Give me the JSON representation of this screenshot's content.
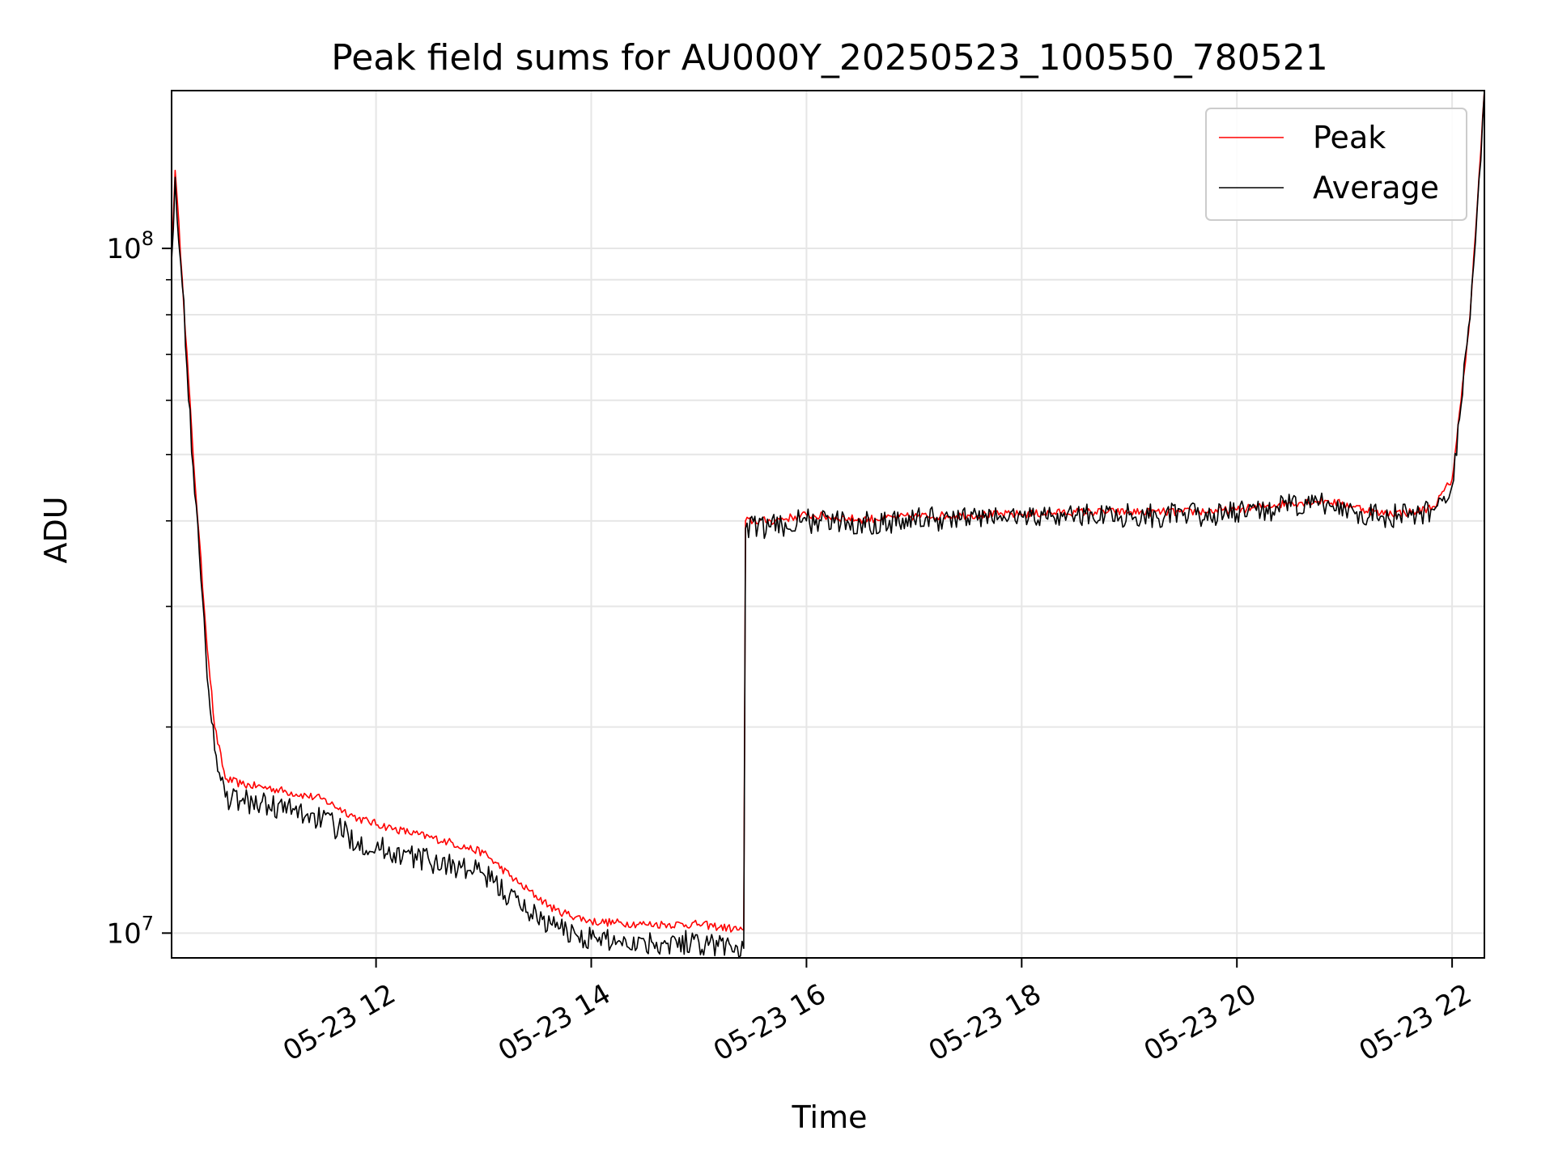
{
  "chart_data": {
    "type": "line",
    "title": "Peak field sums for AU000Y_20250523_100550_780521",
    "xlabel": "Time",
    "ylabel": "ADU",
    "y_scale": "log",
    "ylim": [
      9200000,
      170000000
    ],
    "xlim": [
      "2025-05-23 10:06",
      "2025-05-23 22:18"
    ],
    "grid": true,
    "legend_position": "top-right",
    "x_ticks": [
      {
        "value": "2025-05-23 12:00",
        "label": "05-23 12"
      },
      {
        "value": "2025-05-23 14:00",
        "label": "05-23 14"
      },
      {
        "value": "2025-05-23 16:00",
        "label": "05-23 16"
      },
      {
        "value": "2025-05-23 18:00",
        "label": "05-23 18"
      },
      {
        "value": "2025-05-23 20:00",
        "label": "05-23 20"
      },
      {
        "value": "2025-05-23 22:00",
        "label": "05-23 22"
      }
    ],
    "y_ticks": [
      {
        "value": 10000000,
        "base": "10",
        "exp": "7"
      },
      {
        "value": 100000000,
        "base": "10",
        "exp": "8"
      }
    ],
    "series": [
      {
        "name": "Peak",
        "color": "#ff0000",
        "x": [
          "2025-05-23 10:06",
          "2025-05-23 10:08",
          "2025-05-23 10:12",
          "2025-05-23 10:18",
          "2025-05-23 10:25",
          "2025-05-23 10:30",
          "2025-05-23 10:36",
          "2025-05-23 10:45",
          "2025-05-23 11:00",
          "2025-05-23 11:30",
          "2025-05-23 11:50",
          "2025-05-23 12:10",
          "2025-05-23 12:40",
          "2025-05-23 13:00",
          "2025-05-23 13:20",
          "2025-05-23 13:40",
          "2025-05-23 14:00",
          "2025-05-23 14:30",
          "2025-05-23 15:00",
          "2025-05-23 15:25",
          "2025-05-23 15:26",
          "2025-05-23 15:40",
          "2025-05-23 16:00",
          "2025-05-23 16:30",
          "2025-05-23 17:00",
          "2025-05-23 17:30",
          "2025-05-23 18:00",
          "2025-05-23 18:30",
          "2025-05-23 19:00",
          "2025-05-23 19:30",
          "2025-05-23 20:00",
          "2025-05-23 20:30",
          "2025-05-23 20:50",
          "2025-05-23 21:05",
          "2025-05-23 21:20",
          "2025-05-23 21:40",
          "2025-05-23 21:50",
          "2025-05-23 22:00",
          "2025-05-23 22:05",
          "2025-05-23 22:10",
          "2025-05-23 22:14",
          "2025-05-23 22:18"
        ],
        "y": [
          98000000,
          130000000,
          90000000,
          50000000,
          28000000,
          20000000,
          16800000,
          16500000,
          16300000,
          15700000,
          14700000,
          14200000,
          13600000,
          13100000,
          11800000,
          10800000,
          10400000,
          10300000,
          10300000,
          10100000,
          40000000,
          40000000,
          40800000,
          40200000,
          40600000,
          40800000,
          40900000,
          41200000,
          41200000,
          41200000,
          41500000,
          42500000,
          42800000,
          42000000,
          41000000,
          41200000,
          42000000,
          46000000,
          60000000,
          80000000,
          115000000,
          170000000
        ]
      },
      {
        "name": "Average",
        "color": "#000000",
        "x": [
          "2025-05-23 10:06",
          "2025-05-23 10:08",
          "2025-05-23 10:12",
          "2025-05-23 10:18",
          "2025-05-23 10:25",
          "2025-05-23 10:30",
          "2025-05-23 10:36",
          "2025-05-23 10:45",
          "2025-05-23 11:00",
          "2025-05-23 11:30",
          "2025-05-23 11:50",
          "2025-05-23 12:10",
          "2025-05-23 12:40",
          "2025-05-23 13:00",
          "2025-05-23 13:20",
          "2025-05-23 13:40",
          "2025-05-23 14:00",
          "2025-05-23 14:30",
          "2025-05-23 15:00",
          "2025-05-23 15:25",
          "2025-05-23 15:26",
          "2025-05-23 15:40",
          "2025-05-23 16:00",
          "2025-05-23 16:30",
          "2025-05-23 17:00",
          "2025-05-23 17:30",
          "2025-05-23 18:00",
          "2025-05-23 18:30",
          "2025-05-23 19:00",
          "2025-05-23 19:30",
          "2025-05-23 20:00",
          "2025-05-23 20:30",
          "2025-05-23 20:50",
          "2025-05-23 21:05",
          "2025-05-23 21:20",
          "2025-05-23 21:40",
          "2025-05-23 21:50",
          "2025-05-23 22:00",
          "2025-05-23 22:05",
          "2025-05-23 22:10",
          "2025-05-23 22:14",
          "2025-05-23 22:18"
        ],
        "y": [
          96000000,
          127000000,
          88000000,
          48000000,
          26000000,
          18500000,
          15800000,
          15600000,
          15400000,
          14700000,
          13600000,
          13100000,
          12600000,
          12200000,
          11000000,
          10200000,
          9800000,
          9700000,
          9700000,
          9500000,
          39000000,
          39200000,
          40000000,
          39700000,
          40200000,
          40400000,
          40600000,
          40800000,
          40800000,
          40700000,
          41000000,
          42000000,
          42300000,
          41400000,
          40600000,
          40700000,
          41500000,
          45000000,
          59000000,
          79000000,
          114000000,
          170000000
        ]
      }
    ]
  }
}
